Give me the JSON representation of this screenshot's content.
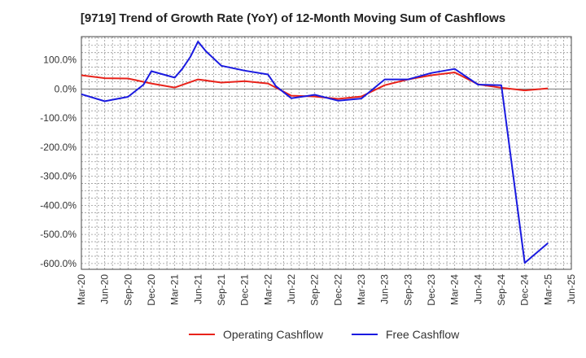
{
  "chart_data": {
    "type": "line",
    "title": "[9719]  Trend of Growth Rate (YoY) of 12-Month Moving Sum of Cashflows",
    "xlabel": "",
    "ylabel": "",
    "ylim": [
      -620,
      180
    ],
    "y_ticks": [
      100,
      0,
      -100,
      -200,
      -300,
      -400,
      -500,
      -600
    ],
    "y_tick_labels": [
      "100.0%",
      "0.0%",
      "-100.0%",
      "-200.0%",
      "-300.0%",
      "-400.0%",
      "-500.0%",
      "-600.0%"
    ],
    "x_tick_labels": [
      "Mar-20",
      "Jun-20",
      "Sep-20",
      "Dec-20",
      "Mar-21",
      "Jun-21",
      "Sep-21",
      "Dec-21",
      "Mar-22",
      "Jun-22",
      "Sep-22",
      "Dec-22",
      "Mar-23",
      "Jun-23",
      "Sep-23",
      "Dec-23",
      "Mar-24",
      "Jun-24",
      "Sep-24",
      "Dec-24",
      "Mar-25",
      "Jun-25"
    ],
    "grid": true,
    "legend": "bottom",
    "series": [
      {
        "name": "Operating Cashflow",
        "color": "#e8231b",
        "points": [
          [
            "Mar-20",
            47
          ],
          [
            "Jun-20",
            37
          ],
          [
            "Sep-20",
            36
          ],
          [
            "Dec-20",
            19
          ],
          [
            "Mar-21",
            5
          ],
          [
            "Jun-21",
            33
          ],
          [
            "Sep-21",
            22
          ],
          [
            "Dec-21",
            27
          ],
          [
            "Mar-22",
            19
          ],
          [
            "Jun-22",
            -23
          ],
          [
            "Sep-22",
            -26
          ],
          [
            "Dec-22",
            -34
          ],
          [
            "Mar-23",
            -26
          ],
          [
            "Jun-23",
            13
          ],
          [
            "Sep-23",
            33
          ],
          [
            "Dec-23",
            47
          ],
          [
            "Mar-24",
            57
          ],
          [
            "Jun-24",
            16
          ],
          [
            "Sep-24",
            4
          ],
          [
            "Dec-24",
            -5
          ],
          [
            "Mar-25",
            2
          ]
        ]
      },
      {
        "name": "Free Cashflow",
        "color": "#1a1ae0",
        "points": [
          [
            "Mar-20",
            -18
          ],
          [
            "Jun-20",
            -42
          ],
          [
            "Sep-20",
            -27
          ],
          [
            "Nov-20",
            15
          ],
          [
            "Dec-20",
            61
          ],
          [
            "Mar-21",
            39
          ],
          [
            "Apr-21",
            70
          ],
          [
            "May-21",
            110
          ],
          [
            "Jun-21",
            163
          ],
          [
            "Jul-21",
            130
          ],
          [
            "Sep-21",
            80
          ],
          [
            "Dec-21",
            63
          ],
          [
            "Mar-22",
            50
          ],
          [
            "Apr-22",
            10
          ],
          [
            "Jun-22",
            -32
          ],
          [
            "Sep-22",
            -20
          ],
          [
            "Dec-22",
            -40
          ],
          [
            "Mar-23",
            -33
          ],
          [
            "Jun-23",
            33
          ],
          [
            "Sep-23",
            33
          ],
          [
            "Dec-23",
            55
          ],
          [
            "Mar-24",
            69
          ],
          [
            "Jun-24",
            15
          ],
          [
            "Sep-24",
            13
          ],
          [
            "Dec-24",
            -598
          ],
          [
            "Mar-25",
            -530
          ]
        ]
      }
    ]
  }
}
